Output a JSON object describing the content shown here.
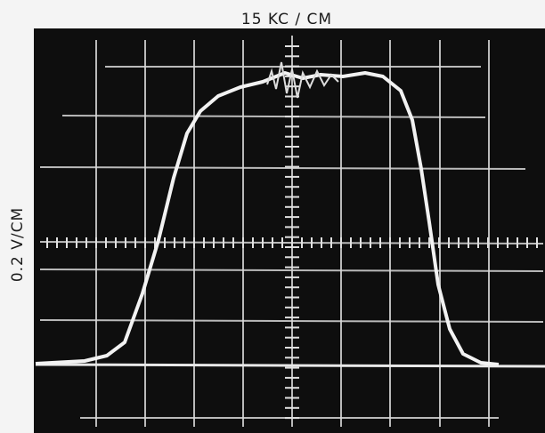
{
  "top_label": "15 KC / CM",
  "side_label": "0.2 V/CM"
}
